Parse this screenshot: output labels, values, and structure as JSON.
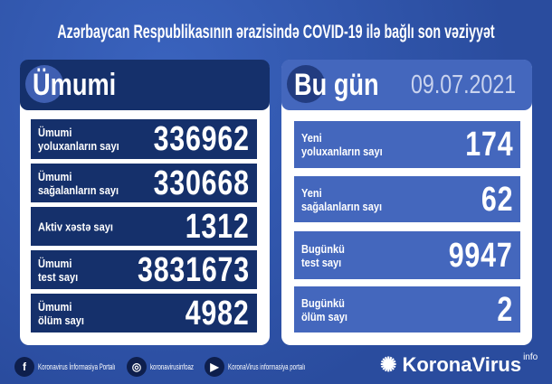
{
  "title": "Azərbaycan Respublikasının ərazisində COVID-19 ilə bağlı son vəziyyət",
  "colors": {
    "background": "#2f55ad",
    "left_header": "#15306b",
    "right_header": "#4467bd"
  },
  "total": {
    "header": "Ümumi",
    "rows": [
      {
        "label": "Ümumi\nyoluxanların sayı",
        "value": "336962"
      },
      {
        "label": "Ümumi\nsağalanların sayı",
        "value": "330668"
      },
      {
        "label": "Aktiv xəstə sayı",
        "value": "1312"
      },
      {
        "label": "Ümumi\ntest sayı",
        "value": "3831673"
      },
      {
        "label": "Ümumi\nölüm sayı",
        "value": "4982"
      }
    ]
  },
  "today": {
    "header": "Bu gün",
    "date": "09.07.2021",
    "rows": [
      {
        "label": "Yeni\nyoluxanların sayı",
        "value": "174"
      },
      {
        "label": "Yeni\nsağalanların sayı",
        "value": "62"
      },
      {
        "label": "Bugünkü\ntest sayı",
        "value": "9947"
      },
      {
        "label": "Bugünkü\nölüm sayı",
        "value": "2"
      }
    ]
  },
  "footer": {
    "facebook": "Koronavirus İnformasiya Portalı",
    "instagram": "koronavirusinfoaz",
    "youtube": "KoronaVirus informasiya portalı",
    "brand": "KoronaVirus",
    "brand_sup": "info"
  }
}
